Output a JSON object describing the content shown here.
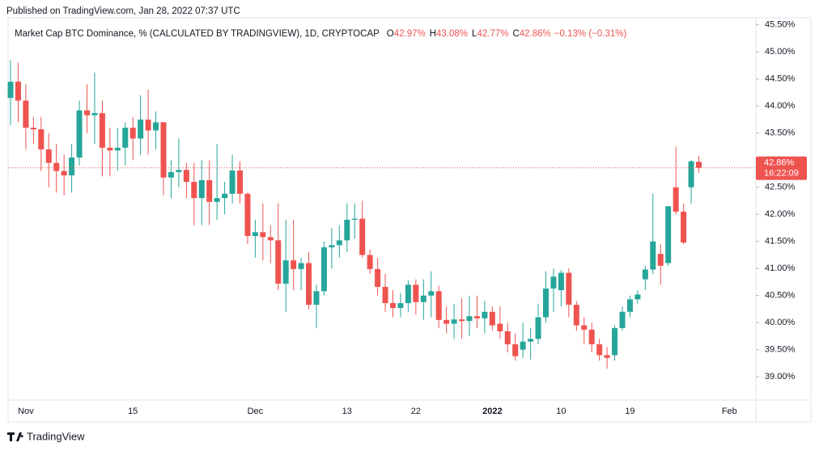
{
  "published": "Published on TradingView.com, Jan 28, 2022 07:37 UTC",
  "footer": {
    "brand": "TradingView"
  },
  "chart_data": {
    "type": "candlestick",
    "title": "Market Cap BTC Dominance, % (CALCULATED BY TRADINGVIEW), 1D, CRYPTOCAP",
    "ohlc_legend": [
      {
        "key": "O",
        "value": "42.97%"
      },
      {
        "key": "H",
        "value": "43.08%"
      },
      {
        "key": "L",
        "value": "42.77%"
      },
      {
        "key": "C",
        "value": "42.86%"
      }
    ],
    "change": "−0.13% (−0.31%)",
    "up_color": "#26a69a",
    "down_color": "#ef5350",
    "categories": [
      null,
      null,
      "Nov",
      null,
      null,
      null,
      null,
      null,
      null,
      null,
      null,
      null,
      null,
      null,
      null,
      null,
      "15",
      null,
      null,
      null,
      null,
      null,
      null,
      null,
      null,
      null,
      null,
      null,
      null,
      null,
      null,
      null,
      "Dec",
      null,
      null,
      null,
      null,
      null,
      null,
      null,
      null,
      null,
      null,
      null,
      "13",
      null,
      null,
      null,
      null,
      null,
      null,
      null,
      null,
      "22",
      null,
      null,
      null,
      null,
      null,
      null,
      null,
      null,
      null,
      "2022",
      null,
      null,
      null,
      null,
      null,
      null,
      null,
      null,
      "10",
      null,
      null,
      null,
      null,
      null,
      null,
      null,
      null,
      "19",
      null,
      null,
      null,
      null,
      null,
      null,
      null,
      null,
      null,
      null,
      null,
      null,
      "Feb"
    ],
    "open": [
      44.15,
      44.45,
      44.1,
      43.6,
      43.57,
      43.2,
      42.95,
      42.8,
      42.72,
      43.05,
      43.92,
      43.83,
      43.87,
      43.23,
      43.18,
      43.23,
      43.6,
      43.4,
      43.75,
      43.55,
      43.7,
      42.68,
      42.78,
      42.82,
      42.6,
      42.3,
      42.63,
      42.23,
      42.3,
      42.38,
      42.81,
      42.38,
      41.6,
      41.67,
      41.58,
      41.52,
      40.72,
      41.15,
      40.99,
      41.1,
      40.33,
      40.58,
      41.39,
      41.43,
      41.52,
      41.9,
      41.92,
      41.25,
      40.99,
      40.66,
      40.36,
      40.27,
      40.36,
      40.7,
      40.38,
      40.5,
      40.58,
      40.05,
      39.98,
      40.06,
      40.03,
      40.12,
      40.08,
      40.2,
      39.98,
      39.84,
      39.6,
      39.5,
      39.65,
      39.7,
      40.1,
      40.63,
      40.6,
      40.92,
      40.33,
      39.95,
      39.87,
      39.6,
      39.4,
      39.4,
      39.9,
      40.2,
      40.43,
      40.8,
      40.98,
      41.27,
      41.1,
      42.5,
      42.05,
      42.5,
      42.97,
      null,
      null,
      null,
      null
    ],
    "high": [
      44.85,
      44.8,
      44.4,
      43.8,
      43.8,
      43.5,
      43.3,
      43.1,
      43.3,
      44.1,
      44.4,
      44.62,
      44.1,
      43.6,
      43.6,
      43.7,
      43.8,
      44.2,
      44.3,
      43.9,
      43.7,
      43.0,
      43.4,
      42.95,
      42.95,
      43.0,
      43.0,
      43.3,
      42.6,
      43.1,
      42.98,
      42.4,
      41.9,
      42.2,
      41.8,
      42.2,
      41.9,
      41.9,
      41.2,
      41.3,
      40.7,
      41.5,
      41.75,
      41.8,
      42.2,
      42.2,
      42.25,
      41.35,
      41.2,
      40.9,
      40.6,
      40.55,
      40.78,
      40.8,
      40.8,
      40.95,
      40.68,
      40.3,
      40.35,
      40.45,
      40.5,
      40.5,
      40.4,
      40.3,
      40.3,
      40.0,
      39.8,
      40.0,
      39.9,
      40.35,
      40.95,
      41.0,
      40.97,
      41.0,
      40.4,
      40.1,
      40.0,
      39.7,
      39.55,
      39.95,
      40.3,
      40.5,
      40.6,
      41.05,
      42.38,
      41.45,
      42.15,
      43.25,
      42.2,
      43.0,
      43.08,
      null,
      null,
      null,
      null
    ],
    "low": [
      43.65,
      43.7,
      43.2,
      43.3,
      42.8,
      42.5,
      42.4,
      42.35,
      42.4,
      42.9,
      43.5,
      43.3,
      42.7,
      42.7,
      42.8,
      42.9,
      43.0,
      43.1,
      43.1,
      43.2,
      42.35,
      42.3,
      42.5,
      42.3,
      41.8,
      41.8,
      41.8,
      41.9,
      42.0,
      42.2,
      42.2,
      41.45,
      41.2,
      41.15,
      41.1,
      40.6,
      40.2,
      40.6,
      40.6,
      40.25,
      39.9,
      40.5,
      41.0,
      41.2,
      41.3,
      41.55,
      41.2,
      40.9,
      40.5,
      40.2,
      40.1,
      40.1,
      40.2,
      40.15,
      40.05,
      40.1,
      39.9,
      39.8,
      39.7,
      39.7,
      39.75,
      39.9,
      39.8,
      39.85,
      39.7,
      39.45,
      39.3,
      39.35,
      39.32,
      39.6,
      40.0,
      40.2,
      40.3,
      40.1,
      39.85,
      39.6,
      39.45,
      39.3,
      39.15,
      39.3,
      39.85,
      40.1,
      40.35,
      40.6,
      40.9,
      40.7,
      41.05,
      42.0,
      41.45,
      42.2,
      42.77,
      null,
      null,
      null,
      null
    ],
    "close": [
      44.45,
      44.1,
      43.6,
      43.57,
      43.2,
      42.95,
      42.8,
      42.72,
      43.05,
      43.92,
      43.83,
      43.87,
      43.23,
      43.18,
      43.23,
      43.6,
      43.4,
      43.75,
      43.55,
      43.7,
      42.68,
      42.78,
      42.82,
      42.6,
      42.3,
      42.63,
      42.23,
      42.3,
      42.38,
      42.81,
      42.38,
      41.6,
      41.67,
      41.58,
      41.52,
      40.72,
      41.15,
      40.99,
      41.1,
      40.33,
      40.58,
      41.39,
      41.43,
      41.52,
      41.9,
      41.92,
      41.25,
      40.99,
      40.66,
      40.36,
      40.27,
      40.36,
      40.7,
      40.38,
      40.5,
      40.58,
      40.05,
      39.98,
      40.06,
      40.03,
      40.12,
      40.08,
      40.2,
      39.95,
      39.84,
      39.6,
      39.38,
      39.65,
      39.7,
      40.1,
      40.63,
      40.85,
      40.92,
      40.33,
      39.95,
      39.87,
      39.6,
      39.4,
      39.35,
      39.9,
      40.2,
      40.43,
      40.52,
      40.98,
      41.5,
      41.05,
      42.15,
      42.05,
      41.48,
      42.98,
      42.86,
      null,
      null,
      null,
      null
    ],
    "ylim": [
      38.57,
      45.63
    ],
    "yticks": [
      {
        "value": 39,
        "label": "39.00%"
      },
      {
        "value": 39.5,
        "label": "39.50%"
      },
      {
        "value": 40,
        "label": "40.00%"
      },
      {
        "value": 40.5,
        "label": "40.50%"
      },
      {
        "value": 41,
        "label": "41.00%"
      },
      {
        "value": 41.5,
        "label": "41.50%"
      },
      {
        "value": 42,
        "label": "42.00%"
      },
      {
        "value": 42.5,
        "label": "42.50%"
      },
      {
        "value": 43,
        "label": "43.00%"
      },
      {
        "value": 43.5,
        "label": "43.50%"
      },
      {
        "value": 44,
        "label": "44.00%"
      },
      {
        "value": 44.5,
        "label": "44.50%"
      },
      {
        "value": 45,
        "label": "45.00%"
      },
      {
        "value": 45.5,
        "label": "45.50%"
      }
    ],
    "bold_category": "2022",
    "last_price": {
      "value": 42.86,
      "label": "42.86%",
      "countdown": "16:22:09"
    },
    "grid": false
  }
}
